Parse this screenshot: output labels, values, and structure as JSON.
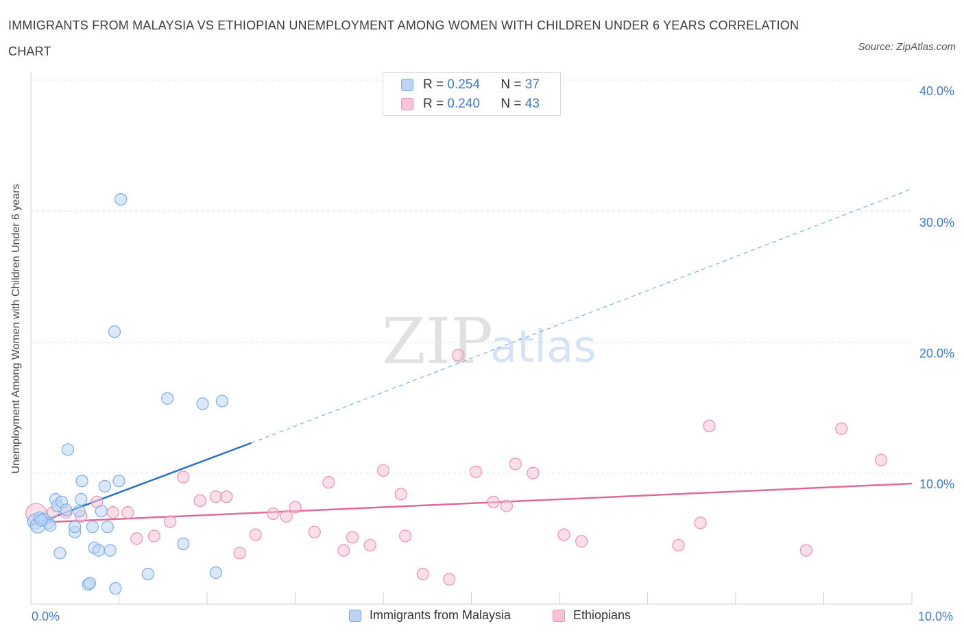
{
  "title": "IMMIGRANTS FROM MALAYSIA VS ETHIOPIAN UNEMPLOYMENT AMONG WOMEN WITH CHILDREN UNDER 6 YEARS CORRELATION CHART",
  "source": "Source: ZipAtlas.com",
  "watermark": {
    "zip": "ZIP",
    "atlas": "atlas"
  },
  "colors": {
    "blue": "#7aaee8",
    "blue_fill": "#bcd5f5",
    "blue_line": "#2b6fcf",
    "pink": "#ee8fb0",
    "pink_fill": "#f8c5d6",
    "pink_line": "#e0699a",
    "axis_text": "#3d7cc9",
    "grid": "#e3e3e3"
  },
  "legend": {
    "blue": {
      "r_label": "R =",
      "r_value": "0.254",
      "n_label": "N =",
      "n_value": "37"
    },
    "pink": {
      "r_label": "R =",
      "r_value": "0.240",
      "n_label": "N =",
      "n_value": "43"
    }
  },
  "chart_data": {
    "type": "scatter",
    "title": "IMMIGRANTS FROM MALAYSIA VS ETHIOPIAN UNEMPLOYMENT AMONG WOMEN WITH CHILDREN UNDER 6 YEARS CORRELATION CHART",
    "xlabel": "",
    "ylabel": "Unemployment Among Women with Children Under 6 years",
    "xlim": [
      0,
      10
    ],
    "ylim": [
      0,
      40
    ],
    "x_tick_labels": [
      "0.0%",
      "10.0%"
    ],
    "y_ticks": [
      10,
      20,
      30,
      40
    ],
    "y_tick_labels": [
      "10.0%",
      "20.0%",
      "30.0%",
      "40.0%"
    ],
    "grid": true,
    "legend_position": "bottom",
    "series": [
      {
        "name": "Immigrants from Malaysia",
        "color": "#7aaee8",
        "points": [
          [
            0.05,
            6.3
          ],
          [
            0.08,
            6.0
          ],
          [
            0.1,
            6.6
          ],
          [
            0.15,
            6.5
          ],
          [
            0.2,
            6.2
          ],
          [
            0.22,
            6.0
          ],
          [
            0.28,
            8.0
          ],
          [
            0.3,
            7.5
          ],
          [
            0.33,
            3.9
          ],
          [
            0.35,
            7.8
          ],
          [
            0.4,
            7.2
          ],
          [
            0.42,
            11.8
          ],
          [
            0.5,
            5.5
          ],
          [
            0.5,
            5.9
          ],
          [
            0.55,
            7.1
          ],
          [
            0.57,
            8.0
          ],
          [
            0.58,
            9.4
          ],
          [
            0.65,
            1.5
          ],
          [
            0.67,
            1.6
          ],
          [
            0.7,
            5.9
          ],
          [
            0.72,
            4.3
          ],
          [
            0.77,
            4.1
          ],
          [
            0.8,
            7.1
          ],
          [
            0.84,
            9.0
          ],
          [
            0.87,
            5.9
          ],
          [
            0.9,
            4.1
          ],
          [
            0.95,
            20.8
          ],
          [
            0.96,
            1.2
          ],
          [
            1.0,
            9.4
          ],
          [
            1.02,
            30.9
          ],
          [
            1.33,
            2.3
          ],
          [
            1.55,
            15.7
          ],
          [
            1.73,
            4.6
          ],
          [
            1.95,
            15.3
          ],
          [
            2.1,
            2.4
          ],
          [
            2.17,
            15.5
          ],
          [
            0.12,
            6.4
          ]
        ],
        "trend": {
          "x": [
            0.0,
            2.5
          ],
          "y": [
            6.0,
            12.3
          ],
          "extended_to": [
            10.0,
            31.7
          ]
        }
      },
      {
        "name": "Ethiopians",
        "color": "#ee8fb0",
        "points": [
          [
            0.06,
            6.9
          ],
          [
            0.25,
            7.0
          ],
          [
            0.4,
            7.0
          ],
          [
            0.57,
            6.7
          ],
          [
            0.75,
            7.8
          ],
          [
            0.93,
            7.0
          ],
          [
            1.1,
            7.0
          ],
          [
            1.2,
            5.0
          ],
          [
            1.4,
            5.2
          ],
          [
            1.58,
            6.3
          ],
          [
            1.73,
            9.7
          ],
          [
            1.92,
            7.9
          ],
          [
            2.1,
            8.2
          ],
          [
            2.22,
            8.2
          ],
          [
            2.37,
            3.9
          ],
          [
            2.55,
            5.3
          ],
          [
            2.75,
            6.9
          ],
          [
            2.9,
            6.7
          ],
          [
            3.0,
            7.4
          ],
          [
            3.22,
            5.5
          ],
          [
            3.38,
            9.3
          ],
          [
            3.55,
            4.1
          ],
          [
            3.65,
            5.1
          ],
          [
            3.85,
            4.5
          ],
          [
            4.0,
            10.2
          ],
          [
            4.2,
            8.4
          ],
          [
            4.25,
            5.2
          ],
          [
            4.45,
            2.3
          ],
          [
            4.75,
            1.9
          ],
          [
            4.85,
            19.0
          ],
          [
            5.05,
            10.1
          ],
          [
            5.25,
            7.8
          ],
          [
            5.4,
            7.5
          ],
          [
            5.5,
            10.7
          ],
          [
            5.7,
            10.0
          ],
          [
            6.05,
            5.3
          ],
          [
            6.25,
            4.8
          ],
          [
            7.35,
            4.5
          ],
          [
            7.6,
            6.2
          ],
          [
            7.7,
            13.6
          ],
          [
            8.8,
            4.1
          ],
          [
            9.2,
            13.4
          ],
          [
            9.65,
            11.0
          ]
        ],
        "trend": {
          "x": [
            0.0,
            10.0
          ],
          "y": [
            6.2,
            9.2
          ]
        }
      }
    ]
  }
}
